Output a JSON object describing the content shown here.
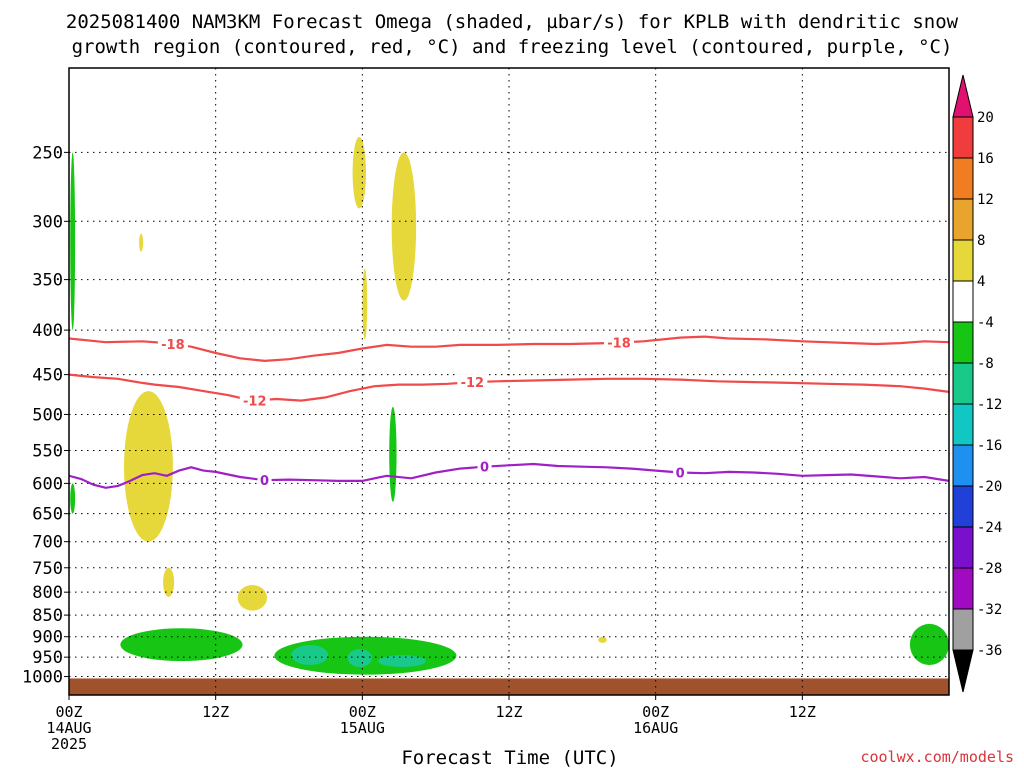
{
  "chart_data": {
    "type": "heatmap",
    "title": "2025081400 NAM3KM Forecast Omega (shaded, µbar/s) for KPLB with dendritic snow",
    "subtitle": "growth region (contoured, red, °C) and freezing level (contoured, purple, °C)",
    "xlabel": "Forecast Time (UTC)",
    "ylabel": "",
    "credit": "coolwx.com/models",
    "x_unit": "forecast hour",
    "x_range": [
      0,
      72
    ],
    "y_scale": "log",
    "y_range": [
      1050,
      200
    ],
    "y_ticks": [
      250,
      300,
      350,
      400,
      450,
      500,
      550,
      600,
      650,
      700,
      750,
      800,
      850,
      900,
      950,
      1000
    ],
    "x_ticks": [
      {
        "hour": 0,
        "label": "00Z",
        "sublabel": "14AUG",
        "sublabel2": "2025"
      },
      {
        "hour": 12,
        "label": "12Z",
        "sublabel": "",
        "sublabel2": ""
      },
      {
        "hour": 24,
        "label": "00Z",
        "sublabel": "15AUG",
        "sublabel2": ""
      },
      {
        "hour": 36,
        "label": "12Z",
        "sublabel": "",
        "sublabel2": ""
      },
      {
        "hour": 48,
        "label": "00Z",
        "sublabel": "16AUG",
        "sublabel2": ""
      },
      {
        "hour": 60,
        "label": "12Z",
        "sublabel": "",
        "sublabel2": ""
      }
    ],
    "grid": true,
    "colorbar": {
      "placement": "right",
      "levels": [
        20,
        16,
        12,
        8,
        4,
        -4,
        -8,
        -12,
        -16,
        -20,
        -24,
        -28,
        -32,
        -36
      ],
      "colors": [
        "#e0116f",
        "#f03c3c",
        "#f07d22",
        "#e8a42c",
        "#e6d83a",
        "#ffffff",
        "#17c614",
        "#19c98a",
        "#10c7c4",
        "#1e90f0",
        "#2040d8",
        "#7a10cc",
        "#a00ac0",
        "#a0a0a0",
        "#000000"
      ]
    },
    "contours": [
      {
        "label": "-18",
        "color": "#f04a4a",
        "points": [
          [
            0,
            409
          ],
          [
            3,
            413
          ],
          [
            6,
            412
          ],
          [
            8,
            414
          ],
          [
            10,
            418
          ],
          [
            12,
            425
          ],
          [
            14,
            431
          ],
          [
            16,
            434
          ],
          [
            18,
            432
          ],
          [
            20,
            428
          ],
          [
            22,
            425
          ],
          [
            24,
            420
          ],
          [
            26,
            416
          ],
          [
            28,
            418
          ],
          [
            30,
            418
          ],
          [
            32,
            416
          ],
          [
            35,
            416
          ],
          [
            38,
            415
          ],
          [
            41,
            415
          ],
          [
            44,
            414
          ],
          [
            47,
            412
          ],
          [
            50,
            408
          ],
          [
            52,
            407
          ],
          [
            54,
            409
          ],
          [
            57,
            410
          ],
          [
            60,
            412
          ],
          [
            64,
            414
          ],
          [
            66,
            415
          ],
          [
            68,
            414
          ],
          [
            70,
            412
          ],
          [
            72,
            413
          ]
        ],
        "label_hours": [
          8.5,
          45
        ]
      },
      {
        "label": "-12",
        "color": "#f04a4a",
        "points": [
          [
            0,
            450
          ],
          [
            2,
            453
          ],
          [
            4,
            455
          ],
          [
            6,
            460
          ],
          [
            7,
            462
          ],
          [
            9,
            465
          ],
          [
            11,
            470
          ],
          [
            13,
            475
          ],
          [
            15,
            482
          ],
          [
            17,
            480
          ],
          [
            19,
            482
          ],
          [
            21,
            478
          ],
          [
            23,
            470
          ],
          [
            25,
            464
          ],
          [
            27,
            462
          ],
          [
            29,
            462
          ],
          [
            31,
            461
          ],
          [
            33,
            459
          ],
          [
            35,
            458
          ],
          [
            38,
            457
          ],
          [
            41,
            456
          ],
          [
            44,
            455
          ],
          [
            47,
            455
          ],
          [
            50,
            456
          ],
          [
            53,
            458
          ],
          [
            56,
            459
          ],
          [
            59,
            460
          ],
          [
            62,
            461
          ],
          [
            65,
            462
          ],
          [
            68,
            464
          ],
          [
            70,
            467
          ],
          [
            72,
            471
          ]
        ],
        "label_hours": [
          15.2,
          33
        ]
      },
      {
        "label": "0",
        "color": "#a020c8",
        "points": [
          [
            0,
            588
          ],
          [
            1,
            593
          ],
          [
            2,
            602
          ],
          [
            3,
            607
          ],
          [
            4,
            604
          ],
          [
            5,
            596
          ],
          [
            6,
            587
          ],
          [
            7,
            584
          ],
          [
            8,
            588
          ],
          [
            9,
            580
          ],
          [
            10,
            575
          ],
          [
            11,
            580
          ],
          [
            12,
            582
          ],
          [
            14,
            590
          ],
          [
            16,
            595
          ],
          [
            18,
            594
          ],
          [
            20,
            595
          ],
          [
            22,
            596
          ],
          [
            24,
            596
          ],
          [
            26,
            588
          ],
          [
            28,
            592
          ],
          [
            30,
            583
          ],
          [
            32,
            577
          ],
          [
            34,
            574
          ],
          [
            36,
            572
          ],
          [
            38,
            570
          ],
          [
            40,
            573
          ],
          [
            42,
            574
          ],
          [
            44,
            575
          ],
          [
            46,
            577
          ],
          [
            48,
            580
          ],
          [
            50,
            583
          ],
          [
            52,
            584
          ],
          [
            54,
            582
          ],
          [
            56,
            583
          ],
          [
            58,
            585
          ],
          [
            60,
            588
          ],
          [
            62,
            587
          ],
          [
            64,
            586
          ],
          [
            66,
            589
          ],
          [
            68,
            592
          ],
          [
            70,
            590
          ],
          [
            72,
            596
          ]
        ],
        "label_hours": [
          16,
          34,
          50
        ]
      }
    ],
    "shaded_regions": [
      {
        "value_range": [
          -8,
          -4
        ],
        "color": "#17c614",
        "hours": [
          0.1,
          0.5
        ],
        "pressure": [
          250,
          400
        ]
      },
      {
        "value_range": [
          -8,
          -4
        ],
        "color": "#17c614",
        "hours": [
          0.1,
          0.5
        ],
        "pressure": [
          600,
          650
        ]
      },
      {
        "value_range": [
          4,
          8
        ],
        "color": "#e6d83a",
        "hours": [
          5.8,
          6.0
        ],
        "pressure": [
          310,
          325
        ]
      },
      {
        "value_range": [
          4,
          8
        ],
        "color": "#e6d83a",
        "hours": [
          4.5,
          8.5
        ],
        "pressure": [
          470,
          700
        ]
      },
      {
        "value_range": [
          4,
          8
        ],
        "color": "#e6d83a",
        "hours": [
          7.7,
          8.6
        ],
        "pressure": [
          750,
          810
        ]
      },
      {
        "value_range": [
          4,
          8
        ],
        "color": "#e6d83a",
        "hours": [
          13.8,
          16.2
        ],
        "pressure": [
          785,
          840
        ]
      },
      {
        "value_range": [
          4,
          8
        ],
        "color": "#e6d83a",
        "hours": [
          23.2,
          24.3
        ],
        "pressure": [
          240,
          290
        ]
      },
      {
        "value_range": [
          4,
          8
        ],
        "color": "#e6d83a",
        "hours": [
          24.0,
          24.4
        ],
        "pressure": [
          340,
          410
        ]
      },
      {
        "value_range": [
          4,
          8
        ],
        "color": "#e6d83a",
        "hours": [
          26.4,
          28.4
        ],
        "pressure": [
          250,
          370
        ]
      },
      {
        "value_range": [
          -8,
          -4
        ],
        "color": "#17c614",
        "hours": [
          26.2,
          26.8
        ],
        "pressure": [
          490,
          630
        ]
      },
      {
        "value_range": [
          -8,
          -4
        ],
        "color": "#17c614",
        "hours": [
          4.2,
          14.2
        ],
        "pressure": [
          880,
          960
        ]
      },
      {
        "value_range": [
          -8,
          -4
        ],
        "color": "#17c614",
        "hours": [
          16.8,
          31.7
        ],
        "pressure": [
          900,
          995
        ]
      },
      {
        "value_range": [
          -12,
          -8
        ],
        "color": "#19c98a",
        "hours": [
          18.2,
          21.2
        ],
        "pressure": [
          920,
          970
        ]
      },
      {
        "value_range": [
          -12,
          -8
        ],
        "color": "#19c98a",
        "hours": [
          22.8,
          24.8
        ],
        "pressure": [
          930,
          975
        ]
      },
      {
        "value_range": [
          -12,
          -8
        ],
        "color": "#19c98a",
        "hours": [
          25.3,
          29.2
        ],
        "pressure": [
          945,
          975
        ]
      },
      {
        "value_range": [
          4,
          8
        ],
        "color": "#e6d83a",
        "hours": [
          43.3,
          44.0
        ],
        "pressure": [
          900,
          915
        ]
      },
      {
        "value_range": [
          -8,
          -4
        ],
        "color": "#17c614",
        "hours": [
          68.8,
          72.0
        ],
        "pressure": [
          870,
          970
        ]
      }
    ],
    "ground": {
      "color": "#a0522d",
      "pressure_top": 1005
    }
  }
}
